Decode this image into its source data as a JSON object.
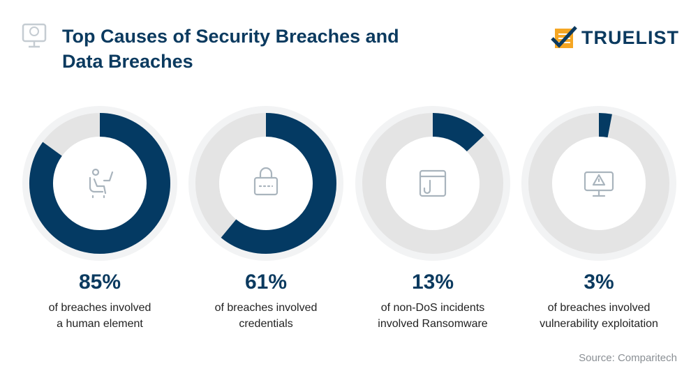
{
  "header": {
    "title_line1": "Top Causes of Security Breaches and",
    "title_line2": "Data Breaches",
    "logo_text": "TRUELIST"
  },
  "colors": {
    "accent": "#043a63",
    "remainder": "#e4e4e4",
    "halo": "#f2f3f4",
    "icon": "#a9b4bd",
    "logo_orange": "#f5a623"
  },
  "chart_data": [
    {
      "type": "pie",
      "variant": "donut",
      "value": 85,
      "label": "85%",
      "description": [
        "of breaches involved",
        "a human element"
      ],
      "icon": "person-at-computer-icon"
    },
    {
      "type": "pie",
      "variant": "donut",
      "value": 61,
      "label": "61%",
      "description": [
        "of breaches involved",
        "credentials"
      ],
      "icon": "lock-icon"
    },
    {
      "type": "pie",
      "variant": "donut",
      "value": 13,
      "label": "13%",
      "description": [
        "of non-DoS incidents",
        "involved Ransomware"
      ],
      "icon": "browser-hook-icon"
    },
    {
      "type": "pie",
      "variant": "donut",
      "value": 3,
      "label": "3%",
      "description": [
        "of breaches involved",
        "vulnerability exploitation"
      ],
      "icon": "monitor-warning-icon"
    }
  ],
  "footer": {
    "source": "Source: Comparitech"
  }
}
